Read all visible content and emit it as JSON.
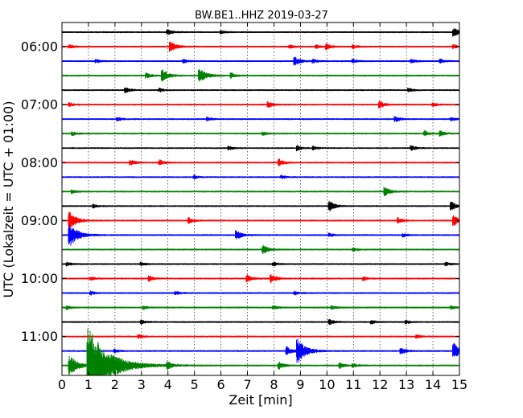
{
  "chart_data": {
    "type": "line",
    "title": "BW.BE1..HHZ 2019-03-27",
    "xlabel": "Zeit  [min]",
    "ylabel": "UTC (Lokalzeit = UTC + 01:00)",
    "xlim": [
      0,
      15
    ],
    "x_ticks": [
      "0",
      "1",
      "2",
      "3",
      "4",
      "5",
      "6",
      "7",
      "8",
      "9",
      "10",
      "11",
      "12",
      "13",
      "14",
      "15"
    ],
    "y_ticks": [
      "06:00",
      "07:00",
      "08:00",
      "09:00",
      "10:00",
      "11:00"
    ],
    "grid": "vertical dotted",
    "trace_colors": [
      "#000000",
      "#ff0000",
      "#0000ff",
      "#008000"
    ],
    "traces": [
      {
        "start": "05:45",
        "events": [
          [
            4.0,
            3
          ],
          [
            6,
            2
          ],
          [
            14.8,
            5
          ]
        ]
      },
      {
        "start": "06:00",
        "events": [
          [
            0.3,
            2
          ],
          [
            4.1,
            6
          ],
          [
            8.6,
            2
          ],
          [
            9.6,
            2
          ],
          [
            10.0,
            3
          ],
          [
            11.0,
            2
          ],
          [
            14.8,
            2
          ]
        ]
      },
      {
        "start": "06:15",
        "events": [
          [
            1.3,
            2
          ],
          [
            4.6,
            2
          ],
          [
            8.8,
            5
          ],
          [
            9.5,
            2
          ],
          [
            11.0,
            2
          ],
          [
            13.2,
            2
          ],
          [
            14.3,
            2
          ]
        ]
      },
      {
        "start": "06:30",
        "events": [
          [
            3.2,
            3
          ],
          [
            3.8,
            7
          ],
          [
            5.2,
            9
          ],
          [
            6.4,
            3
          ]
        ]
      },
      {
        "start": "06:45",
        "events": [
          [
            2.4,
            3
          ],
          [
            3.7,
            2
          ],
          [
            13.1,
            2
          ]
        ]
      },
      {
        "start": "07:00",
        "events": [
          [
            0.3,
            2
          ],
          [
            7.8,
            3
          ],
          [
            12.0,
            4
          ],
          [
            14.0,
            2
          ]
        ]
      },
      {
        "start": "07:15",
        "events": [
          [
            2.1,
            2
          ],
          [
            5.5,
            2
          ],
          [
            12.6,
            3
          ],
          [
            14.7,
            2
          ]
        ]
      },
      {
        "start": "07:30",
        "events": [
          [
            0.4,
            2
          ],
          [
            7.6,
            2
          ],
          [
            13.7,
            3
          ],
          [
            14.3,
            3
          ]
        ]
      },
      {
        "start": "07:45",
        "events": [
          [
            6.3,
            2
          ],
          [
            8.9,
            3
          ],
          [
            9.5,
            2
          ],
          [
            13.2,
            3
          ]
        ]
      },
      {
        "start": "08:00",
        "events": [
          [
            2.6,
            3
          ],
          [
            3.7,
            3
          ],
          [
            8.2,
            4
          ]
        ]
      },
      {
        "start": "08:15",
        "events": [
          [
            5.0,
            2
          ],
          [
            8.3,
            2
          ]
        ]
      },
      {
        "start": "08:30",
        "events": [
          [
            0.4,
            2
          ],
          [
            12.2,
            5
          ]
        ]
      },
      {
        "start": "08:45",
        "events": [
          [
            1.2,
            2
          ],
          [
            10.1,
            6
          ],
          [
            14.7,
            5
          ]
        ]
      },
      {
        "start": "09:00",
        "events": [
          [
            0.3,
            10
          ],
          [
            4.8,
            3
          ],
          [
            12.7,
            3
          ],
          [
            14.8,
            6
          ]
        ]
      },
      {
        "start": "09:15",
        "events": [
          [
            0.3,
            14
          ],
          [
            6.6,
            5
          ],
          [
            10.1,
            2
          ],
          [
            12.9,
            2
          ]
        ]
      },
      {
        "start": "09:30",
        "events": [
          [
            7.6,
            5
          ],
          [
            11.0,
            2
          ]
        ]
      },
      {
        "start": "09:45",
        "events": [
          [
            0.2,
            2
          ],
          [
            3.0,
            2
          ],
          [
            8.0,
            2
          ],
          [
            14.5,
            2
          ]
        ]
      },
      {
        "start": "10:00",
        "events": [
          [
            1.1,
            2
          ],
          [
            3.3,
            3
          ],
          [
            7.0,
            4
          ],
          [
            7.9,
            5
          ],
          [
            11.4,
            2
          ]
        ]
      },
      {
        "start": "10:15",
        "events": [
          [
            1.1,
            2
          ],
          [
            4.3,
            2
          ],
          [
            8.8,
            2
          ]
        ]
      },
      {
        "start": "10:30",
        "events": [
          [
            0.2,
            2
          ],
          [
            3.1,
            2
          ],
          [
            8.0,
            2
          ],
          [
            10.2,
            2
          ],
          [
            14.7,
            2
          ]
        ]
      },
      {
        "start": "10:45",
        "events": [
          [
            3.0,
            2
          ],
          [
            10.1,
            3
          ],
          [
            11.7,
            2
          ],
          [
            13.0,
            2
          ]
        ]
      },
      {
        "start": "11:00",
        "events": [
          [
            2.9,
            2
          ],
          [
            13.4,
            2
          ]
        ]
      },
      {
        "start": "11:15",
        "events": [
          [
            2.0,
            2
          ],
          [
            8.5,
            5
          ],
          [
            8.9,
            14
          ],
          [
            12.8,
            4
          ],
          [
            14.8,
            9
          ]
        ]
      },
      {
        "start": "11:30",
        "events": [
          [
            0.3,
            12
          ],
          [
            1.0,
            48
          ],
          [
            4.0,
            4
          ],
          [
            8.2,
            4
          ],
          [
            10.5,
            3
          ],
          [
            11.0,
            2
          ]
        ]
      }
    ]
  }
}
